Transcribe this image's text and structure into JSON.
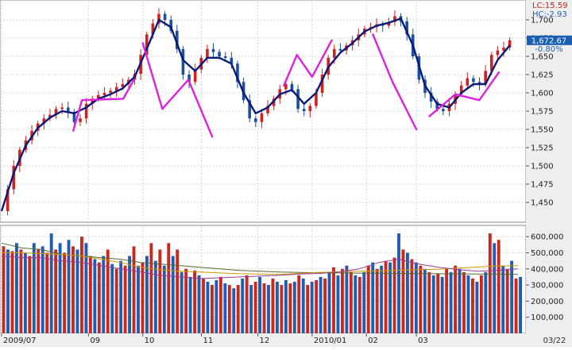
{
  "header": {
    "lc_label": "LC:15.59",
    "hc_label": "HC:-2.93",
    "last_price": "1,672.67",
    "change_pct": "-0.80%",
    "date_stamp": "03/22"
  },
  "colors": {
    "up_candle": "#cc2222",
    "down_candle": "#1a4fa0",
    "moving_average": "#0a1a7a",
    "pattern_line": "#dd22dd",
    "volume_up": "#c8281e",
    "volume_down": "#1f5cb4",
    "grid": "#d8d8d8",
    "price_tag_bg": "#1a5fb4"
  },
  "chart_data": [
    {
      "type": "candlestick",
      "name": "price",
      "title": "",
      "ylim": [
        1425,
        1725
      ],
      "yticks": [
        1450,
        1475,
        1500,
        1525,
        1550,
        1575,
        1600,
        1625,
        1650,
        1675,
        1700
      ],
      "ytick_labels": [
        "1,450",
        "1,475",
        "1,500",
        "1,525",
        "1,550",
        "1,575",
        "1,600",
        "1,625",
        "1,650",
        "1,675",
        "1,700"
      ],
      "grid": true,
      "close_series": [
        [
          0,
          1438
        ],
        [
          2,
          1468
        ],
        [
          4,
          1500
        ],
        [
          6,
          1522
        ],
        [
          8,
          1535
        ],
        [
          10,
          1548
        ],
        [
          12,
          1558
        ],
        [
          14,
          1565
        ],
        [
          16,
          1570
        ],
        [
          18,
          1578
        ],
        [
          20,
          1580
        ],
        [
          22,
          1574
        ],
        [
          24,
          1560
        ],
        [
          26,
          1565
        ],
        [
          28,
          1585
        ],
        [
          30,
          1592
        ],
        [
          32,
          1597
        ],
        [
          34,
          1600
        ],
        [
          36,
          1603
        ],
        [
          38,
          1608
        ],
        [
          40,
          1612
        ],
        [
          42,
          1618
        ],
        [
          44,
          1626
        ],
        [
          46,
          1652
        ],
        [
          48,
          1680
        ],
        [
          50,
          1695
        ],
        [
          52,
          1708
        ],
        [
          54,
          1700
        ],
        [
          56,
          1685
        ],
        [
          58,
          1660
        ],
        [
          60,
          1625
        ],
        [
          62,
          1615
        ],
        [
          64,
          1632
        ],
        [
          66,
          1648
        ],
        [
          68,
          1660
        ],
        [
          70,
          1656
        ],
        [
          72,
          1650
        ],
        [
          74,
          1648
        ],
        [
          76,
          1640
        ],
        [
          78,
          1615
        ],
        [
          80,
          1590
        ],
        [
          82,
          1565
        ],
        [
          84,
          1560
        ],
        [
          86,
          1572
        ],
        [
          88,
          1582
        ],
        [
          90,
          1592
        ],
        [
          92,
          1605
        ],
        [
          94,
          1612
        ],
        [
          96,
          1605
        ],
        [
          98,
          1578
        ],
        [
          100,
          1575
        ],
        [
          102,
          1582
        ],
        [
          104,
          1600
        ],
        [
          106,
          1625
        ],
        [
          108,
          1648
        ],
        [
          110,
          1660
        ],
        [
          112,
          1658
        ],
        [
          114,
          1665
        ],
        [
          116,
          1672
        ],
        [
          118,
          1680
        ],
        [
          120,
          1688
        ],
        [
          122,
          1690
        ],
        [
          124,
          1694
        ],
        [
          126,
          1692
        ],
        [
          128,
          1697
        ],
        [
          130,
          1705
        ],
        [
          132,
          1698
        ],
        [
          134,
          1680
        ],
        [
          136,
          1650
        ],
        [
          138,
          1618
        ],
        [
          140,
          1600
        ],
        [
          142,
          1588
        ],
        [
          144,
          1578
        ],
        [
          146,
          1575
        ],
        [
          148,
          1585
        ],
        [
          150,
          1598
        ],
        [
          152,
          1610
        ],
        [
          154,
          1620
        ],
        [
          156,
          1615
        ],
        [
          158,
          1612
        ],
        [
          160,
          1630
        ],
        [
          162,
          1652
        ],
        [
          164,
          1658
        ],
        [
          166,
          1662
        ],
        [
          168,
          1672
        ]
      ],
      "moving_average": [
        [
          0,
          1438
        ],
        [
          4,
          1490
        ],
        [
          8,
          1528
        ],
        [
          12,
          1552
        ],
        [
          16,
          1566
        ],
        [
          20,
          1575
        ],
        [
          24,
          1572
        ],
        [
          28,
          1580
        ],
        [
          32,
          1592
        ],
        [
          36,
          1598
        ],
        [
          40,
          1606
        ],
        [
          44,
          1622
        ],
        [
          48,
          1660
        ],
        [
          52,
          1700
        ],
        [
          56,
          1690
        ],
        [
          60,
          1645
        ],
        [
          64,
          1630
        ],
        [
          68,
          1648
        ],
        [
          72,
          1648
        ],
        [
          76,
          1640
        ],
        [
          80,
          1600
        ],
        [
          84,
          1572
        ],
        [
          88,
          1580
        ],
        [
          92,
          1598
        ],
        [
          96,
          1604
        ],
        [
          100,
          1585
        ],
        [
          104,
          1600
        ],
        [
          108,
          1635
        ],
        [
          112,
          1655
        ],
        [
          116,
          1668
        ],
        [
          120,
          1684
        ],
        [
          124,
          1692
        ],
        [
          128,
          1696
        ],
        [
          132,
          1702
        ],
        [
          136,
          1665
        ],
        [
          140,
          1610
        ],
        [
          144,
          1585
        ],
        [
          148,
          1580
        ],
        [
          152,
          1600
        ],
        [
          156,
          1612
        ],
        [
          160,
          1612
        ],
        [
          164,
          1645
        ],
        [
          168,
          1665
        ]
      ],
      "pattern_lines": [
        [
          [
            33,
            1548
          ],
          [
            37,
            1590
          ],
          [
            56,
            1592
          ],
          [
            61,
            1618
          ]
        ],
        [
          [
            65,
            1668
          ],
          [
            74,
            1578
          ],
          [
            86,
            1618
          ],
          [
            97,
            1540
          ]
        ],
        [
          [
            130,
            1610
          ],
          [
            136,
            1652
          ],
          [
            143,
            1622
          ],
          [
            152,
            1672
          ]
        ],
        [
          [
            171,
            1680
          ],
          [
            180,
            1615
          ],
          [
            191,
            1550
          ]
        ],
        [
          [
            197,
            1568
          ],
          [
            209,
            1598
          ],
          [
            220,
            1590
          ],
          [
            229,
            1628
          ]
        ]
      ]
    },
    {
      "type": "bar",
      "name": "volume",
      "title": "",
      "ylim": [
        0,
        660000
      ],
      "yticks": [
        100000,
        200000,
        300000,
        400000,
        500000,
        600000
      ],
      "ytick_labels": [
        "100,000",
        "200,000",
        "300,000",
        "400,000",
        "500,000",
        "600,000"
      ],
      "values": [
        540000,
        520000,
        510000,
        560000,
        520000,
        500000,
        480000,
        560000,
        520000,
        540000,
        500000,
        620000,
        520000,
        560000,
        500000,
        580000,
        540000,
        520000,
        600000,
        560000,
        480000,
        460000,
        440000,
        480000,
        520000,
        430000,
        400000,
        450000,
        420000,
        480000,
        540000,
        420000,
        440000,
        480000,
        560000,
        450000,
        520000,
        420000,
        560000,
        480000,
        520000,
        380000,
        400000,
        350000,
        390000,
        360000,
        340000,
        320000,
        300000,
        330000,
        350000,
        310000,
        300000,
        280000,
        300000,
        340000,
        360000,
        300000,
        320000,
        350000,
        310000,
        300000,
        340000,
        320000,
        300000,
        330000,
        310000,
        320000,
        360000,
        340000,
        300000,
        320000,
        330000,
        350000,
        340000,
        380000,
        410000,
        360000,
        400000,
        420000,
        380000,
        360000,
        350000,
        380000,
        420000,
        440000,
        400000,
        420000,
        450000,
        440000,
        470000,
        620000,
        520000,
        500000,
        460000,
        440000,
        420000,
        400000,
        380000,
        360000,
        370000,
        350000,
        400000,
        380000,
        420000,
        400000,
        380000,
        360000,
        340000,
        320000,
        360000,
        380000,
        620000,
        560000,
        580000,
        420000,
        400000,
        450000,
        340000,
        350000
      ],
      "series": [
        {
          "name": "",
          "values": [
            560000,
            530000,
            520000,
            490000,
            480000,
            470000,
            460000,
            440000,
            430000,
            420000,
            410000,
            400000,
            390000,
            385000,
            380000,
            378000,
            376000,
            375000,
            374000,
            373000,
            372000,
            371000,
            370000,
            369000,
            368000,
            367000,
            366000
          ]
        },
        {
          "name": "",
          "values": [
            500000,
            500000,
            495000,
            490000,
            480000,
            460000,
            440000,
            410000,
            395000,
            385000,
            380000,
            375000,
            370000,
            368000,
            366000,
            372000,
            378000,
            382000,
            385000,
            388000,
            392000,
            395000,
            398000,
            405000,
            412000,
            418000,
            420000
          ]
        },
        {
          "name": "",
          "values": [
            480000,
            470000,
            470000,
            450000,
            440000,
            420000,
            400000,
            380000,
            360000,
            350000,
            340000,
            345000,
            350000,
            355000,
            360000,
            368000,
            372000,
            380000,
            400000,
            440000,
            460000,
            430000,
            410000,
            395000,
            385000,
            390000,
            400000
          ]
        }
      ]
    }
  ],
  "x_axis": {
    "labels": [
      "2009/07",
      "09",
      "10",
      "11",
      "12",
      "2010/01",
      "02",
      "03"
    ],
    "positions": [
      0,
      40,
      65,
      92,
      118,
      143,
      168,
      191
    ]
  }
}
